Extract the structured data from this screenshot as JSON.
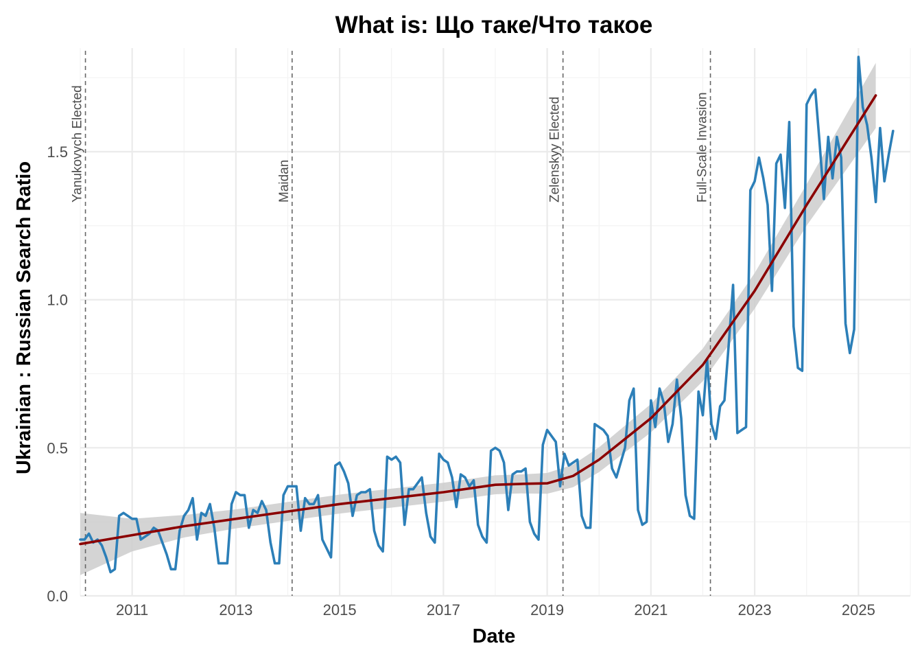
{
  "chart_data": {
    "type": "line",
    "title": "What is: Що таке/Что такое",
    "xlabel": "Date",
    "ylabel": "Ukrainian : Russian Search Ratio",
    "xlim": [
      "2010-01-01",
      "2025-12-31"
    ],
    "ylim": [
      0,
      1.85
    ],
    "x_ticks": [
      "2011",
      "2013",
      "2015",
      "2017",
      "2019",
      "2021",
      "2023",
      "2025"
    ],
    "y_ticks": [
      "0.0",
      "0.5",
      "1.0",
      "1.5"
    ],
    "grid": true,
    "legend": "none",
    "colors": {
      "series": "#2c7fb8",
      "trend": "#8b0000",
      "band": "#cccccc",
      "event_line": "#666666"
    },
    "events": [
      {
        "label": "Yanukovych Elected",
        "date": "2010-02-07"
      },
      {
        "label": "Maidan",
        "date": "2014-02-01"
      },
      {
        "label": "Zelenskyy Elected",
        "date": "2019-04-21"
      },
      {
        "label": "Full-Scale Invasion",
        "date": "2022-02-24"
      }
    ],
    "series": [
      {
        "start": "2010-01",
        "frequency": "monthly",
        "values": [
          0.19,
          0.19,
          0.21,
          0.18,
          0.19,
          0.17,
          0.13,
          0.08,
          0.09,
          0.27,
          0.28,
          0.27,
          0.26,
          0.26,
          0.19,
          0.2,
          0.21,
          0.23,
          0.22,
          0.18,
          0.14,
          0.09,
          0.09,
          0.22,
          0.27,
          0.29,
          0.33,
          0.19,
          0.28,
          0.27,
          0.31,
          0.23,
          0.11,
          0.11,
          0.11,
          0.31,
          0.35,
          0.34,
          0.34,
          0.23,
          0.29,
          0.28,
          0.32,
          0.29,
          0.18,
          0.11,
          0.11,
          0.34,
          0.37,
          0.37,
          0.37,
          0.22,
          0.33,
          0.31,
          0.31,
          0.34,
          0.19,
          0.16,
          0.13,
          0.44,
          0.45,
          0.42,
          0.38,
          0.27,
          0.34,
          0.35,
          0.35,
          0.36,
          0.22,
          0.17,
          0.15,
          0.47,
          0.46,
          0.47,
          0.45,
          0.24,
          0.36,
          0.36,
          0.38,
          0.4,
          0.28,
          0.2,
          0.18,
          0.48,
          0.46,
          0.45,
          0.4,
          0.3,
          0.41,
          0.4,
          0.37,
          0.39,
          0.24,
          0.2,
          0.18,
          0.49,
          0.5,
          0.49,
          0.45,
          0.29,
          0.41,
          0.42,
          0.42,
          0.43,
          0.25,
          0.21,
          0.19,
          0.51,
          0.56,
          0.54,
          0.52,
          0.37,
          0.48,
          0.44,
          0.45,
          0.46,
          0.27,
          0.23,
          0.23,
          0.58,
          0.57,
          0.56,
          0.54,
          0.43,
          0.4,
          0.45,
          0.5,
          0.66,
          0.7,
          0.29,
          0.24,
          0.25,
          0.66,
          0.57,
          0.7,
          0.65,
          0.52,
          0.58,
          0.73,
          0.6,
          0.34,
          0.27,
          0.26,
          0.69,
          0.61,
          0.8,
          0.58,
          0.53,
          0.64,
          0.66,
          0.85,
          1.05,
          0.55,
          0.56,
          0.57,
          1.37,
          1.4,
          1.48,
          1.41,
          1.32,
          1.03,
          1.46,
          1.49,
          1.31,
          1.6,
          0.91,
          0.77,
          0.76,
          1.66,
          1.69,
          1.71,
          1.53,
          1.34,
          1.55,
          1.41,
          1.55,
          1.48,
          0.92,
          0.82,
          0.9,
          1.82,
          1.65,
          1.59,
          1.48,
          1.33,
          1.58,
          1.4,
          1.49,
          1.57
        ]
      }
    ],
    "trend": {
      "type": "loess",
      "knots": [
        {
          "x": "2010-01",
          "y": 0.175,
          "se": 0.105
        },
        {
          "x": "2011-01",
          "y": 0.205,
          "se": 0.055
        },
        {
          "x": "2012-01",
          "y": 0.235,
          "se": 0.038
        },
        {
          "x": "2013-01",
          "y": 0.26,
          "se": 0.032
        },
        {
          "x": "2014-01",
          "y": 0.285,
          "se": 0.032
        },
        {
          "x": "2015-01",
          "y": 0.31,
          "se": 0.032
        },
        {
          "x": "2016-01",
          "y": 0.33,
          "se": 0.032
        },
        {
          "x": "2017-01",
          "y": 0.35,
          "se": 0.032
        },
        {
          "x": "2018-01",
          "y": 0.375,
          "se": 0.032
        },
        {
          "x": "2018-07",
          "y": 0.378,
          "se": 0.032
        },
        {
          "x": "2019-01",
          "y": 0.38,
          "se": 0.035
        },
        {
          "x": "2019-07",
          "y": 0.405,
          "se": 0.038
        },
        {
          "x": "2020-01",
          "y": 0.46,
          "se": 0.042
        },
        {
          "x": "2021-01",
          "y": 0.6,
          "se": 0.048
        },
        {
          "x": "2022-01",
          "y": 0.78,
          "se": 0.055
        },
        {
          "x": "2023-01",
          "y": 1.03,
          "se": 0.06
        },
        {
          "x": "2024-01",
          "y": 1.32,
          "se": 0.07
        },
        {
          "x": "2025-05",
          "y": 1.69,
          "se": 0.11
        }
      ]
    }
  }
}
